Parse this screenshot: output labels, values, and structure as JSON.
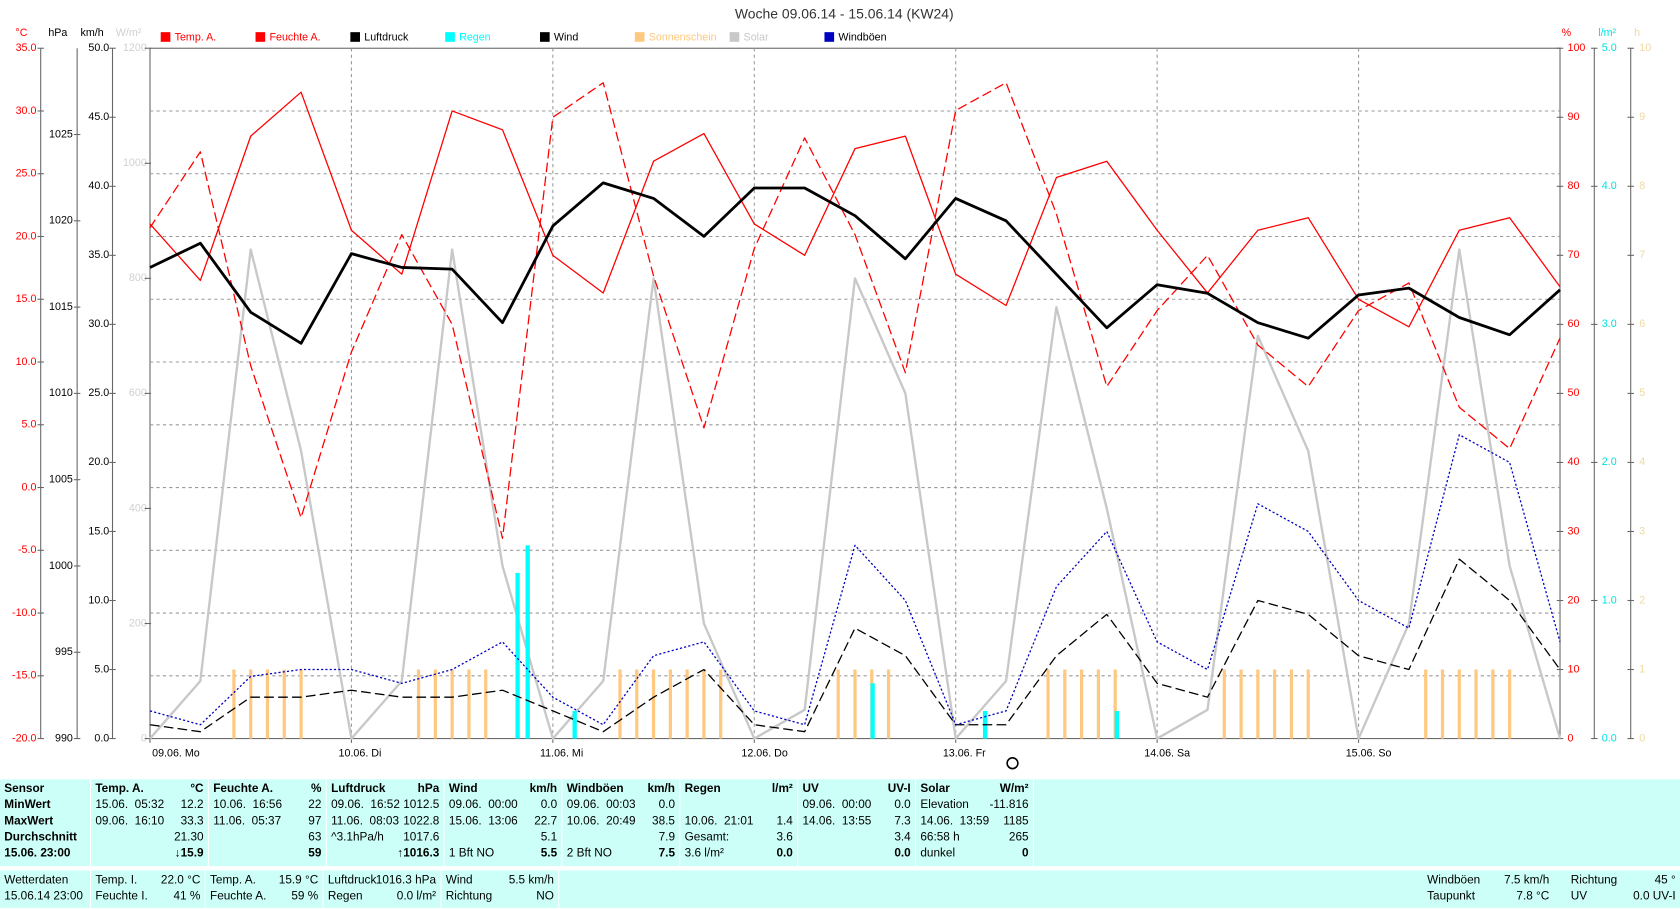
{
  "chart_data": {
    "type": "line",
    "title": "Woche 09.06.14 - 15.06.14 (KW24)",
    "grid": true,
    "xlim": [
      0,
      168
    ],
    "xticks": [
      {
        "value": 0,
        "label": "09.06. Mo"
      },
      {
        "value": 24,
        "label": "10.06. Di"
      },
      {
        "value": 48,
        "label": "11.06. Mi"
      },
      {
        "value": 72,
        "label": "12.06. Do"
      },
      {
        "value": 96,
        "label": "13.06. Fr"
      },
      {
        "value": 120,
        "label": "14.06. Sa"
      },
      {
        "value": 144,
        "label": "15.06. So"
      }
    ],
    "axes": [
      {
        "label": "°C",
        "color": "#ff0000",
        "side": "left",
        "lim": [
          -20,
          35
        ],
        "ticks": [
          {
            "value": -20,
            "label": "-20.0"
          },
          {
            "value": -15,
            "label": "-15.0"
          },
          {
            "value": -10,
            "label": "-10.0"
          },
          {
            "value": -5,
            "label": "-5.0"
          },
          {
            "value": 0,
            "label": "0.0"
          },
          {
            "value": 5,
            "label": "5.0"
          },
          {
            "value": 10,
            "label": "10.0"
          },
          {
            "value": 15,
            "label": "15.0"
          },
          {
            "value": 20,
            "label": "20.0"
          },
          {
            "value": 25,
            "label": "25.0"
          },
          {
            "value": 30,
            "label": "30.0"
          },
          {
            "value": 35,
            "label": "35.0"
          }
        ]
      },
      {
        "label": "hPa",
        "color": "#000000",
        "side": "left",
        "lim": [
          990,
          1030
        ],
        "ticks": [
          990,
          995,
          1000,
          1005,
          1010,
          1015,
          1020,
          1025
        ]
      },
      {
        "label": "km/h",
        "color": "#000000",
        "side": "left",
        "lim": [
          0,
          50
        ],
        "ticks": [
          {
            "value": 0,
            "label": "0.0"
          },
          {
            "value": 5,
            "label": "5.0"
          },
          {
            "value": 10,
            "label": "10.0"
          },
          {
            "value": 15,
            "label": "15.0"
          },
          {
            "value": 20,
            "label": "20.0"
          },
          {
            "value": 25,
            "label": "25.0"
          },
          {
            "value": 30,
            "label": "30.0"
          },
          {
            "value": 35,
            "label": "35.0"
          },
          {
            "value": 40,
            "label": "40.0"
          },
          {
            "value": 45,
            "label": "45.0"
          },
          {
            "value": 50,
            "label": "50.0"
          }
        ]
      },
      {
        "label": "W/m²",
        "color": "#d0d0d0",
        "side": "left",
        "lim": [
          0,
          1200
        ],
        "ticks": [
          0,
          200,
          400,
          600,
          800,
          1000,
          1200
        ]
      },
      {
        "label": "%",
        "color": "#ff0000",
        "side": "right",
        "lim": [
          0,
          100
        ],
        "ticks": [
          0,
          10,
          20,
          30,
          40,
          50,
          60,
          70,
          80,
          90,
          100
        ]
      },
      {
        "label": "l/m²",
        "color": "#00e0e0",
        "side": "right",
        "lim": [
          0,
          5
        ],
        "ticks": [
          {
            "value": 0,
            "label": "0.0"
          },
          {
            "value": 1,
            "label": "1.0"
          },
          {
            "value": 2,
            "label": "2.0"
          },
          {
            "value": 3,
            "label": "3.0"
          },
          {
            "value": 4,
            "label": "4.0"
          },
          {
            "value": 5,
            "label": "5.0"
          }
        ]
      },
      {
        "label": "h",
        "color": "#f0d8a0",
        "side": "right",
        "lim": [
          0,
          10
        ],
        "ticks": [
          0,
          1,
          2,
          3,
          4,
          5,
          6,
          7,
          8,
          9,
          10
        ]
      }
    ],
    "series": [
      {
        "name": "Temp. A.",
        "color": "#ff0000",
        "axis": 0,
        "style": "solid",
        "x": [
          0,
          6,
          12,
          18,
          24,
          30,
          36,
          42,
          48,
          54,
          60,
          66,
          72,
          78,
          84,
          90,
          96,
          102,
          108,
          114,
          120,
          126,
          132,
          138,
          144,
          150,
          156,
          162,
          168
        ],
        "values": [
          21,
          16.5,
          28,
          31.5,
          20.5,
          17,
          30,
          28.5,
          18.5,
          15.5,
          26,
          28.2,
          21,
          18.5,
          27,
          28,
          17,
          14.5,
          24.7,
          26,
          20.5,
          15.5,
          20.5,
          21.5,
          15,
          12.8,
          20.5,
          21.5,
          16
        ]
      },
      {
        "name": "Feuchte A.",
        "color": "#ff0000",
        "axis": 4,
        "style": "dashed",
        "x": [
          0,
          6,
          12,
          18,
          24,
          30,
          36,
          42,
          48,
          54,
          60,
          66,
          72,
          78,
          84,
          90,
          96,
          102,
          108,
          114,
          120,
          126,
          132,
          138,
          144,
          150,
          156,
          162,
          168
        ],
        "values": [
          74,
          85,
          54,
          32,
          56,
          73,
          60,
          29,
          90,
          95,
          67,
          45,
          71,
          87,
          73,
          53,
          91,
          95,
          76,
          51,
          62,
          70,
          57,
          51,
          62,
          66,
          48,
          42,
          58
        ]
      },
      {
        "name": "Luftdruck",
        "color": "#000000",
        "axis": 1,
        "style": "bold",
        "x": [
          0,
          6,
          12,
          18,
          24,
          30,
          36,
          42,
          48,
          54,
          60,
          66,
          72,
          78,
          84,
          90,
          96,
          102,
          108,
          114,
          120,
          126,
          132,
          138,
          144,
          150,
          156,
          162,
          168
        ],
        "values": [
          1017.3,
          1018.7,
          1014.7,
          1012.9,
          1018.1,
          1017.3,
          1017.2,
          1014.1,
          1019.7,
          1022.2,
          1021.3,
          1019.1,
          1021.9,
          1021.9,
          1020.3,
          1017.8,
          1021.3,
          1020.0,
          1016.9,
          1013.8,
          1016.3,
          1015.8,
          1014.1,
          1013.2,
          1015.7,
          1016.1,
          1014.4,
          1013.4,
          1016.0
        ]
      },
      {
        "name": "Regen",
        "color": "#00ffff",
        "axis": 5,
        "style": "bar",
        "x": [
          43.8,
          45,
          50.6,
          86.1,
          99.5,
          115.2
        ],
        "values": [
          1.2,
          1.4,
          0.2,
          0.4,
          0.2,
          0.2
        ]
      },
      {
        "name": "Wind",
        "color": "#000000",
        "axis": 2,
        "style": "dashed",
        "x": [
          0,
          6,
          12,
          18,
          24,
          30,
          36,
          42,
          48,
          54,
          60,
          66,
          72,
          78,
          84,
          90,
          96,
          102,
          108,
          114,
          120,
          126,
          132,
          138,
          144,
          150,
          156,
          162,
          168
        ],
        "values": [
          1,
          0.5,
          3,
          3,
          3.5,
          3,
          3,
          3.5,
          2,
          0.5,
          3,
          5,
          1,
          0.5,
          8,
          6,
          1,
          1,
          6,
          9,
          4,
          3,
          10,
          9,
          6,
          5,
          13,
          10,
          5
        ]
      },
      {
        "name": "Sonnenschein",
        "color": "#ffc880",
        "axis": 6,
        "style": "bar",
        "x": [
          10,
          12,
          14,
          16,
          18,
          32,
          34,
          36,
          38,
          40,
          56,
          58,
          60,
          62,
          64,
          66,
          68,
          82,
          84,
          86,
          88,
          107,
          109,
          111,
          113,
          115,
          128,
          130,
          132,
          134,
          136,
          138,
          152,
          154,
          156,
          158,
          160,
          162
        ],
        "values": [
          1,
          1,
          1,
          1,
          1,
          1,
          1,
          1,
          1,
          1,
          1,
          1,
          1,
          1,
          1,
          1,
          1,
          1,
          1,
          1,
          1,
          1,
          1,
          1,
          1,
          1,
          1,
          1,
          1,
          1,
          1,
          1,
          1,
          1,
          1,
          1,
          1,
          1
        ]
      },
      {
        "name": "Solar",
        "color": "#c8c8c8",
        "axis": 3,
        "style": "wide",
        "x": [
          0,
          6,
          12,
          18,
          24,
          30,
          36,
          42,
          48,
          54,
          60,
          66,
          72,
          78,
          84,
          90,
          96,
          102,
          108,
          114,
          120,
          126,
          132,
          138,
          144,
          150,
          156,
          162,
          168
        ],
        "values": [
          0,
          100,
          850,
          500,
          0,
          100,
          850,
          300,
          0,
          100,
          800,
          200,
          0,
          50,
          800,
          600,
          0,
          100,
          750,
          400,
          0,
          50,
          700,
          500,
          0,
          200,
          850,
          300,
          0
        ]
      },
      {
        "name": "Windböen",
        "color": "#0000c0",
        "axis": 2,
        "style": "dotted",
        "x": [
          0,
          6,
          12,
          18,
          24,
          30,
          36,
          42,
          48,
          54,
          60,
          66,
          72,
          78,
          84,
          90,
          96,
          102,
          108,
          114,
          120,
          126,
          132,
          138,
          144,
          150,
          156,
          162,
          168
        ],
        "values": [
          2,
          1,
          4.5,
          5,
          5,
          4,
          5,
          7,
          3,
          1,
          6,
          7,
          2,
          1,
          14,
          10,
          1,
          2,
          11,
          15,
          7,
          5,
          17,
          15,
          10,
          8,
          22,
          20,
          7
        ]
      }
    ]
  },
  "table": {
    "columns": [
      {
        "title": "Sensor",
        "rows": [
          [
            "MinWert"
          ],
          [
            "MaxWert"
          ],
          [
            "Durchschnitt"
          ],
          [
            "15.06. 23:00"
          ]
        ]
      },
      {
        "title": "Temp. A.",
        "unit": "°C",
        "rows": [
          [
            "15.06.  05:32",
            "12.2"
          ],
          [
            "09.06.  16:10",
            "33.3"
          ],
          [
            "21.30"
          ],
          [
            "↓15.9"
          ]
        ]
      },
      {
        "title": "Feuchte A.",
        "unit": "%",
        "rows": [
          [
            "10.06.  16:56",
            "22"
          ],
          [
            "11.06.  05:37",
            "97"
          ],
          [
            "63"
          ],
          [
            "59"
          ]
        ]
      },
      {
        "title": "Luftdruck",
        "unit": "hPa",
        "rows": [
          [
            "09.06.  16:52",
            "1012.5"
          ],
          [
            "11.06.  08:03",
            "1022.8"
          ],
          [
            "^3.1hPa/h",
            "1017.6"
          ],
          [
            "↑1016.3"
          ]
        ]
      },
      {
        "title": "Wind",
        "unit": "km/h",
        "rows": [
          [
            "09.06.  00:00",
            "0.0"
          ],
          [
            "15.06.  13:06",
            "22.7"
          ],
          [
            "5.1"
          ],
          [
            "1 Bft NO",
            "5.5"
          ]
        ]
      },
      {
        "title": "Windböen",
        "unit": "km/h",
        "rows": [
          [
            "09.06.  00:03",
            "0.0"
          ],
          [
            "10.06.  20:49",
            "38.5"
          ],
          [
            "7.9"
          ],
          [
            "2 Bft NO",
            "7.5"
          ]
        ]
      },
      {
        "title": "Regen",
        "unit": "l/m²",
        "rows": [
          null,
          [
            "10.06.  21:01",
            "1.4"
          ],
          [
            "Gesamt:",
            "3.6"
          ],
          [
            "3.6 l/m²",
            "0.0"
          ]
        ]
      },
      {
        "title": "UV",
        "unit": "UV-I",
        "rows": [
          [
            "09.06.  00:00",
            "0.0"
          ],
          [
            "14.06.  13:55",
            "7.3"
          ],
          [
            "3.4"
          ],
          [
            "0.0"
          ]
        ]
      },
      {
        "title": "Solar",
        "unit": "W/m²",
        "rows": [
          [
            "Elevation",
            "-11.816"
          ],
          [
            "14.06.  13:59",
            "1185"
          ],
          [
            "66:58 h",
            "265"
          ],
          [
            "dunkel",
            "0"
          ]
        ]
      }
    ]
  },
  "status": {
    "left": [
      [
        [
          "Wetterdaten"
        ],
        [
          "15.06.14 23:00"
        ]
      ],
      [
        [
          "Temp. I.",
          "22.0 °C"
        ],
        [
          "Feuchte I.",
          "41 %"
        ]
      ],
      [
        [
          "Temp. A.",
          "15.9 °C"
        ],
        [
          "Feuchte A.",
          "59 %"
        ]
      ],
      [
        [
          "Luftdruck",
          "1016.3 hPa"
        ],
        [
          "Regen",
          "0.0 l/m²"
        ]
      ],
      [
        [
          "Wind",
          "5.5 km/h"
        ],
        [
          "Richtung",
          "NO"
        ]
      ]
    ],
    "right": [
      [
        "Windböen",
        "7.5 km/h",
        "Richtung",
        "45 °"
      ],
      [
        "Taupunkt",
        "7.8 °C",
        "UV",
        "0.0 UV-I"
      ]
    ]
  }
}
